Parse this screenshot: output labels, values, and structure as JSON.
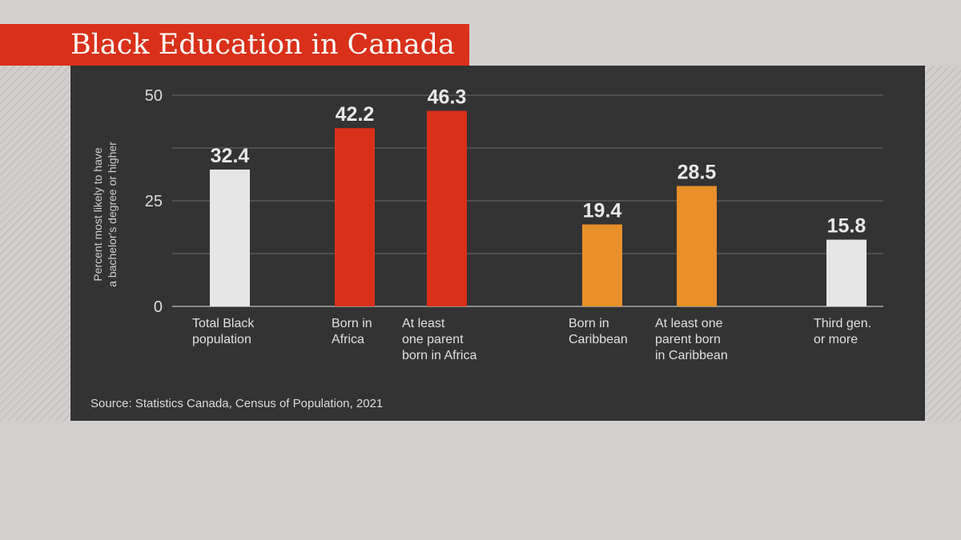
{
  "chart_data": {
    "type": "bar",
    "title": "Black Education in Canada",
    "ylabel_lines": [
      "Percent most likely to have",
      "a bachelor's degree or higher"
    ],
    "ylim": [
      0,
      50
    ],
    "yticks": [
      0,
      25,
      50
    ],
    "categories": [
      [
        "Total Black",
        "population"
      ],
      [
        "Born in",
        "Africa"
      ],
      [
        "At least",
        "one parent",
        "born in Africa"
      ],
      [
        "Born in",
        "Caribbean"
      ],
      [
        "At least one",
        "parent born",
        "in Caribbean"
      ],
      [
        "Third gen.",
        "or more"
      ]
    ],
    "values": [
      32.4,
      42.2,
      46.3,
      19.4,
      28.5,
      15.8
    ],
    "value_labels": [
      "32.4",
      "42.2",
      "46.3",
      "19.4",
      "28.5",
      "15.8"
    ],
    "bar_colors": [
      "#e6e6e6",
      "#d9301a",
      "#d9301a",
      "#e8902a",
      "#e8902a",
      "#e6e6e6"
    ],
    "grid": true,
    "legend": "none"
  },
  "source": "Source: Statistics Canada, Census of Population, 2021"
}
